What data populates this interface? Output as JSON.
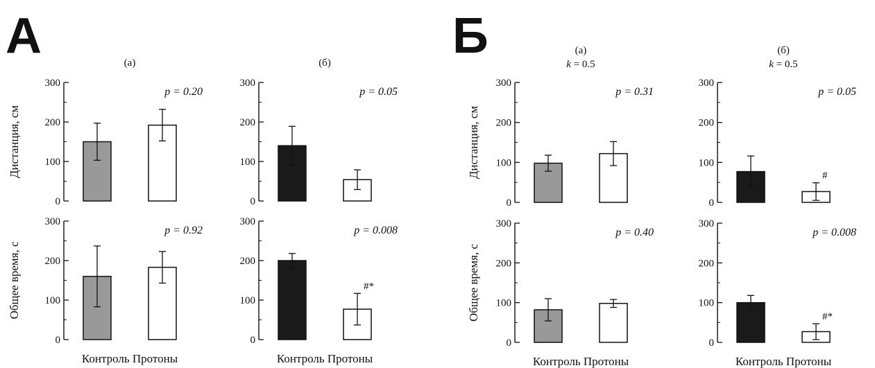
{
  "figure": {
    "panel_labels": [
      "А",
      "Б"
    ],
    "ylabels": [
      "Дистанция, см",
      "Общее время, с"
    ],
    "xtick_labels": [
      "Контроль",
      "Протоны"
    ],
    "titles": [
      "(а)",
      "(б)",
      "(а)",
      "(б)"
    ],
    "title_k": [
      "",
      "",
      "k = 0.5",
      "k = 0.5"
    ],
    "yticks": [
      0,
      100,
      200,
      300
    ],
    "colors": {
      "gray": "#999999",
      "black": "#1a1a1a",
      "white": "#ffffff",
      "ink": "#111111"
    }
  },
  "chart_data": [
    {
      "type": "bar",
      "panel": "А",
      "subplot": "(а)",
      "ylabel": "Дистанция, см",
      "categories": [
        "Контроль",
        "Протоны"
      ],
      "values": [
        150,
        192
      ],
      "errors": [
        47,
        40
      ],
      "ylim": [
        0,
        300
      ],
      "annotation": "p = 0.20",
      "bar_colors": [
        "gray",
        "white"
      ],
      "markers": [
        "",
        ""
      ]
    },
    {
      "type": "bar",
      "panel": "А",
      "subplot": "(б)",
      "ylabel": "Дистанция, см",
      "categories": [
        "Контроль",
        "Протоны"
      ],
      "values": [
        140,
        54
      ],
      "errors": [
        49,
        25
      ],
      "ylim": [
        0,
        300
      ],
      "annotation": "p = 0.05",
      "bar_colors": [
        "black",
        "white"
      ],
      "markers": [
        "",
        ""
      ]
    },
    {
      "type": "bar",
      "panel": "А",
      "subplot": "(а)",
      "ylabel": "Общее время, с",
      "categories": [
        "Контроль",
        "Протоны"
      ],
      "values": [
        160,
        183
      ],
      "errors": [
        77,
        40
      ],
      "ylim": [
        0,
        300
      ],
      "annotation": "p = 0.92",
      "bar_colors": [
        "gray",
        "white"
      ],
      "markers": [
        "",
        ""
      ]
    },
    {
      "type": "bar",
      "panel": "А",
      "subplot": "(б)",
      "ylabel": "Общее время, с",
      "categories": [
        "Контроль",
        "Протоны"
      ],
      "values": [
        200,
        77
      ],
      "errors": [
        18,
        40
      ],
      "ylim": [
        0,
        300
      ],
      "annotation": "p = 0.008",
      "bar_colors": [
        "black",
        "white"
      ],
      "markers": [
        "",
        "#*"
      ]
    },
    {
      "type": "bar",
      "panel": "Б",
      "subplot": "(а)",
      "subtitle": "k = 0.5",
      "ylabel": "Дистанция, см",
      "categories": [
        "Контроль",
        "Протоны"
      ],
      "values": [
        98,
        122
      ],
      "errors": [
        20,
        30
      ],
      "ylim": [
        0,
        300
      ],
      "annotation": "p = 0.31",
      "bar_colors": [
        "gray",
        "white"
      ],
      "markers": [
        "",
        ""
      ]
    },
    {
      "type": "bar",
      "panel": "Б",
      "subplot": "(б)",
      "subtitle": "k = 0.5",
      "ylabel": "Дистанция, см",
      "categories": [
        "Контроль",
        "Протоны"
      ],
      "values": [
        77,
        27
      ],
      "errors": [
        39,
        22
      ],
      "ylim": [
        0,
        300
      ],
      "annotation": "p = 0.05",
      "bar_colors": [
        "black",
        "white"
      ],
      "markers": [
        "",
        "#"
      ]
    },
    {
      "type": "bar",
      "panel": "Б",
      "subplot": "(а)",
      "subtitle": "k = 0.5",
      "ylabel": "Общее время, с",
      "categories": [
        "Контроль",
        "Протоны"
      ],
      "values": [
        82,
        98
      ],
      "errors": [
        28,
        10
      ],
      "ylim": [
        0,
        300
      ],
      "annotation": "p = 0.40",
      "bar_colors": [
        "gray",
        "white"
      ],
      "markers": [
        "",
        ""
      ]
    },
    {
      "type": "bar",
      "panel": "Б",
      "subplot": "(б)",
      "subtitle": "k = 0.5",
      "ylabel": "Общее время, с",
      "categories": [
        "Контроль",
        "Протоны"
      ],
      "values": [
        100,
        27
      ],
      "errors": [
        18,
        20
      ],
      "ylim": [
        0,
        300
      ],
      "annotation": "p = 0.008",
      "bar_colors": [
        "black",
        "white"
      ],
      "markers": [
        "",
        "#*"
      ]
    }
  ]
}
